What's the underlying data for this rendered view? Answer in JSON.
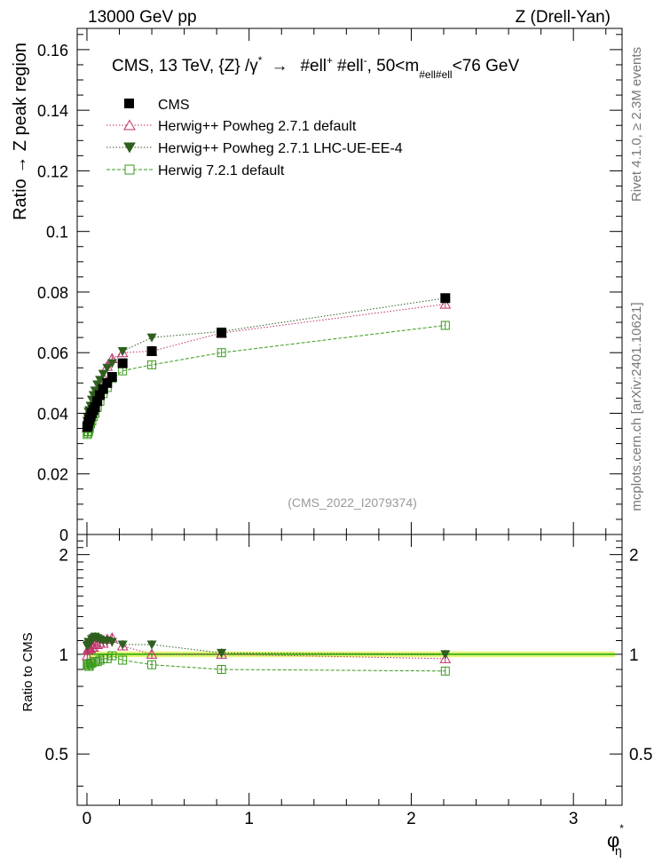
{
  "header": {
    "left": "13000 GeV pp",
    "right": "Z (Drell-Yan)"
  },
  "side": {
    "rivet": "Rivet 4.1.0, ≥ 2.3M events",
    "mcplots": "mcplots.cern.ch [arXiv:2401.10621]"
  },
  "colors": {
    "cms": "#000000",
    "herwig_pp_default": "#c0306a",
    "herwig_pp_lhc": "#2f5f1f",
    "herwig7": "#3a9a1a",
    "band": "#e6f57a"
  },
  "chart_data": {
    "type": "scatter",
    "title_parts": {
      "prefix": "CMS, 13 TeV, {Z} /γ",
      "gamma_sup": "*",
      "arrow": "→",
      "ell1": "#ell",
      "sup1": "+",
      "ell2": "#ell",
      "sup2": "-",
      "cut_prefix": ", 50<m",
      "cut_sub": "#ell#ell",
      "cut_suffix": "<76 GeV"
    },
    "analysis_id": "(CMS_2022_I2079374)",
    "ylabel": "Ratio → Z peak region",
    "ratio_ylabel": "Ratio to CMS",
    "xlabel": "φ",
    "xlabel_sup": "*",
    "xlabel_sub": "η",
    "xlim": [
      -0.06,
      3.3
    ],
    "ylim": [
      0,
      0.167
    ],
    "ratio_ylim": [
      0.35,
      2.3
    ],
    "x_ticks": [
      0,
      1,
      2,
      3
    ],
    "x_tick_labels": [
      "0",
      "1",
      "2",
      "3"
    ],
    "y_ticks": [
      0,
      0.02,
      0.04,
      0.06,
      0.08,
      0.1,
      0.12,
      0.14,
      0.16
    ],
    "y_tick_labels": [
      "0",
      "0.02",
      "0.04",
      "0.06",
      "0.08",
      "0.1",
      "0.12",
      "0.14",
      "0.16"
    ],
    "ratio_ticks": [
      0.5,
      1,
      2
    ],
    "ratio_tick_labels": [
      "0.5",
      "1",
      "2"
    ],
    "x": [
      0.002,
      0.006,
      0.01,
      0.015,
      0.022,
      0.03,
      0.04,
      0.05,
      0.064,
      0.08,
      0.1,
      0.125,
      0.155,
      0.22,
      0.4,
      0.83,
      2.21
    ],
    "series": [
      {
        "name": "CMS",
        "key": "cms",
        "marker": "square-filled",
        "values": [
          0.0355,
          0.036,
          0.037,
          0.038,
          0.039,
          0.04,
          0.041,
          0.042,
          0.044,
          0.046,
          0.048,
          0.05,
          0.052,
          0.0565,
          0.0605,
          0.0665,
          0.078
        ]
      },
      {
        "name": "Herwig++ Powheg 2.7.1 default",
        "key": "herwig_pp_default",
        "marker": "triangle-up-open",
        "values": [
          0.0352,
          0.037,
          0.0385,
          0.0395,
          0.0405,
          0.042,
          0.043,
          0.045,
          0.047,
          0.0495,
          0.052,
          0.0555,
          0.058,
          0.06,
          0.0605,
          0.0665,
          0.076
        ]
      },
      {
        "name": "Herwig++ Powheg 2.7.1 LHC-UE-EE-4",
        "key": "herwig_pp_lhc",
        "marker": "triangle-down-filled",
        "values": [
          0.0375,
          0.0385,
          0.0405,
          0.041,
          0.0425,
          0.0445,
          0.046,
          0.0475,
          0.0495,
          0.051,
          0.053,
          0.055,
          0.0565,
          0.0605,
          0.065,
          0.067,
          0.078
        ]
      },
      {
        "name": "Herwig 7.2.1 default",
        "key": "herwig7",
        "marker": "square-open",
        "values": [
          0.033,
          0.0335,
          0.034,
          0.035,
          0.0365,
          0.0375,
          0.039,
          0.04,
          0.042,
          0.044,
          0.0465,
          0.0485,
          0.0515,
          0.054,
          0.056,
          0.06,
          0.069
        ]
      }
    ],
    "ratio_series": [
      {
        "key": "herwig_pp_default",
        "values": [
          0.99,
          1.03,
          1.04,
          1.04,
          1.04,
          1.05,
          1.05,
          1.07,
          1.07,
          1.08,
          1.08,
          1.11,
          1.12,
          1.06,
          1.0,
          1.0,
          0.97
        ]
      },
      {
        "key": "herwig_pp_lhc",
        "values": [
          1.06,
          1.07,
          1.09,
          1.08,
          1.09,
          1.11,
          1.12,
          1.13,
          1.12,
          1.11,
          1.1,
          1.1,
          1.09,
          1.07,
          1.07,
          1.01,
          1.0
        ]
      },
      {
        "key": "herwig7",
        "values": [
          0.93,
          0.93,
          0.92,
          0.92,
          0.94,
          0.94,
          0.95,
          0.95,
          0.95,
          0.96,
          0.97,
          0.97,
          0.99,
          0.96,
          0.93,
          0.9,
          0.89
        ]
      }
    ],
    "cms_band_halfwidth": 0.02
  }
}
